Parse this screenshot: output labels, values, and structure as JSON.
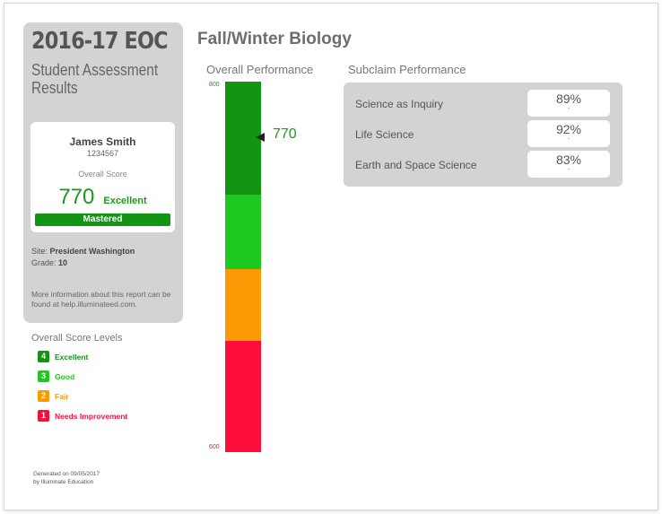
{
  "report": {
    "title": "2016-17 EOC",
    "subtitle_line1": "Student Assessment",
    "subtitle_line2": "Results"
  },
  "student": {
    "name": "James Smith",
    "id": "1234567",
    "overall_score_label": "Overall Score",
    "score": "770",
    "score_level": "Excellent",
    "mastery": "Mastered",
    "site_label": "Site:",
    "site": "President Washington",
    "grade_label": "Grade:",
    "grade": "10",
    "more_info": "More information about this report can be found at help.illuminateed.com."
  },
  "levels": {
    "title": "Overall Score Levels",
    "items": [
      {
        "num": "4",
        "label": "Excellent",
        "color": "#129512"
      },
      {
        "num": "3",
        "label": "Good",
        "color": "#1fc81f"
      },
      {
        "num": "2",
        "label": "Fair",
        "color": "#fb9a05"
      },
      {
        "num": "1",
        "label": "Needs Improvement",
        "color": "#fd0d3b"
      }
    ]
  },
  "footer": {
    "generated_line1": "Generated on 09/05/2017",
    "generated_line2": "by Illuminate Education"
  },
  "main": {
    "title": "Fall/Winter Biology",
    "performance_title": "Overall Performance",
    "subclaim_title": "Subclaim Performance"
  },
  "performance_bar": {
    "min": 600,
    "max": 800,
    "min_label": "600",
    "max_label": "800",
    "score": 770,
    "score_label": "770",
    "bands": [
      {
        "level": "Excellent",
        "from": 739,
        "to": 800,
        "color": "#129512"
      },
      {
        "level": "Good",
        "from": 699,
        "to": 739,
        "color": "#1fc81f"
      },
      {
        "level": "Fair",
        "from": 660,
        "to": 699,
        "color": "#fb9a05"
      },
      {
        "level": "Needs Improvement",
        "from": 600,
        "to": 660,
        "color": "#fd0d3b"
      }
    ]
  },
  "subclaims": [
    {
      "name": "Science as Inquiry",
      "percent": "89%",
      "sub": "-"
    },
    {
      "name": "Life Science",
      "percent": "92%",
      "sub": "-"
    },
    {
      "name": "Earth and Space Science",
      "percent": "83%",
      "sub": "-"
    }
  ]
}
